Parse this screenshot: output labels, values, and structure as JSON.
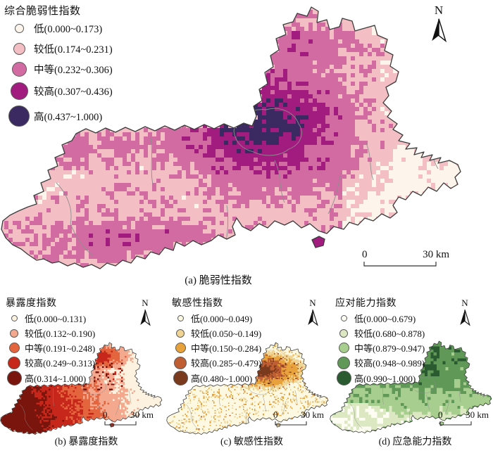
{
  "figure": {
    "north_label": "N",
    "scale": {
      "zero": "0",
      "max": "30 km"
    }
  },
  "panels": [
    {
      "id": "a",
      "caption": "(a) 脆弱性指数",
      "legend_title": "综合脆弱性指数",
      "classes": [
        {
          "label": "低(0.000~0.173)",
          "color": "#fdf4ec"
        },
        {
          "label": "较低(0.174~0.231)",
          "color": "#f3bfc5"
        },
        {
          "label": "中等(0.232~0.306)",
          "color": "#d36ba3"
        },
        {
          "label": "较高(0.307~0.436)",
          "color": "#a21c80"
        },
        {
          "label": "高(0.437~1.000)",
          "color": "#3a2a61"
        }
      ]
    },
    {
      "id": "b",
      "caption": "(b) 暴露度指数",
      "legend_title": "暴露度指数",
      "classes": [
        {
          "label": "低(0.000~0.131)",
          "color": "#fcf2df"
        },
        {
          "label": "较低(0.132~0.190)",
          "color": "#f4a98f"
        },
        {
          "label": "中等(0.191~0.248)",
          "color": "#e4643e"
        },
        {
          "label": "较高(0.249~0.313)",
          "color": "#c7271a"
        },
        {
          "label": "高(0.314~1.000)",
          "color": "#7a150e"
        }
      ]
    },
    {
      "id": "c",
      "caption": "(c) 敏感性指数",
      "legend_title": "敏感性指数",
      "classes": [
        {
          "label": "低(0.000~0.049)",
          "color": "#fdf8e2"
        },
        {
          "label": "较低(0.050~0.149)",
          "color": "#f0d494"
        },
        {
          "label": "中等(0.150~0.284)",
          "color": "#e8a23b"
        },
        {
          "label": "较高(0.285~0.479)",
          "color": "#c05e33"
        },
        {
          "label": "高(0.480~1.000)",
          "color": "#7a3a1d"
        }
      ]
    },
    {
      "id": "d",
      "caption": "(d) 应急能力指数",
      "legend_title": "应对能力指数",
      "classes": [
        {
          "label": "低(0.000~0.679)",
          "color": "#fdfdf4"
        },
        {
          "label": "较低(0.680~0.878)",
          "color": "#dbe8c2"
        },
        {
          "label": "中等(0.879~0.947)",
          "color": "#a7ce8e"
        },
        {
          "label": "较高(0.948~0.989)",
          "color": "#5f9857"
        },
        {
          "label": "高(0.990~1.000)",
          "color": "#2a5a2f"
        }
      ]
    }
  ]
}
